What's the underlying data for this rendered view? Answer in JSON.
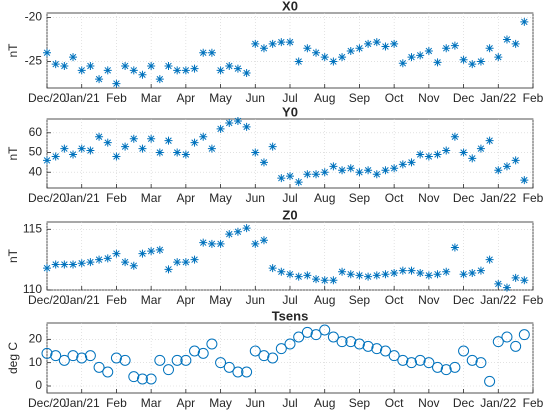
{
  "chart_data": [
    {
      "type": "scatter",
      "title": "X0",
      "ylabel": "nT",
      "marker": "asterisk",
      "color": "#0072BD",
      "grid": true,
      "x": [
        0,
        0.25,
        0.5,
        0.75,
        1,
        1.25,
        1.5,
        1.75,
        2,
        2.25,
        2.5,
        2.75,
        3,
        3.25,
        3.5,
        3.75,
        4,
        4.25,
        4.5,
        4.75,
        5,
        5.25,
        5.5,
        5.75,
        6,
        6.25,
        6.5,
        6.75,
        7,
        7.25,
        7.5,
        7.75,
        8,
        8.25,
        8.5,
        8.75,
        9,
        9.25,
        9.5,
        9.75,
        10,
        10.25,
        10.5,
        10.75,
        11,
        11.25,
        11.5,
        11.75,
        12,
        12.25,
        12.5,
        12.75,
        13,
        13.25,
        13.5,
        13.75
      ],
      "values": [
        -24,
        -25.3,
        -25.5,
        -24.5,
        -26,
        -25.5,
        -27,
        -26,
        -27.5,
        -25.5,
        -26,
        -26.5,
        -25.5,
        -27,
        -25.5,
        -26,
        -26,
        -25.8,
        -24,
        -24,
        -26,
        -25.5,
        -25.8,
        -26.3,
        -23,
        -23.5,
        -23,
        -22.8,
        -22.8,
        -25,
        -23.5,
        -24,
        -24.5,
        -25,
        -24.5,
        -23.8,
        -23.5,
        -23,
        -22.8,
        -23.3,
        -23,
        -25.2,
        -24.5,
        -24.3,
        -23.8,
        -25.1,
        -23.5,
        -23.2,
        -24.8,
        -25.3,
        -25,
        -23.5,
        -24.5,
        -22.5,
        -23,
        -20.5
      ],
      "xlim": [
        0,
        14
      ],
      "ylim": [
        -28,
        -19.5
      ],
      "yticks": [
        -25,
        -20
      ],
      "xticks": [
        {
          "value": 0,
          "label": "Dec/20"
        },
        {
          "value": 1,
          "label": "Jan/21"
        },
        {
          "value": 2,
          "label": "Feb"
        },
        {
          "value": 3,
          "label": "Mar"
        },
        {
          "value": 4,
          "label": "Apr"
        },
        {
          "value": 5,
          "label": "May"
        },
        {
          "value": 6,
          "label": "Jun"
        },
        {
          "value": 7,
          "label": "Jul"
        },
        {
          "value": 8,
          "label": "Aug"
        },
        {
          "value": 9,
          "label": "Sep"
        },
        {
          "value": 10,
          "label": "Oct"
        },
        {
          "value": 11,
          "label": "Nov"
        },
        {
          "value": 12,
          "label": "Dec"
        },
        {
          "value": 13,
          "label": "Jan/22"
        },
        {
          "value": 14,
          "label": "Feb"
        }
      ]
    },
    {
      "type": "scatter",
      "title": "Y0",
      "ylabel": "nT",
      "marker": "asterisk",
      "color": "#0072BD",
      "grid": true,
      "x": [
        0,
        0.25,
        0.5,
        0.75,
        1,
        1.25,
        1.5,
        1.75,
        2,
        2.25,
        2.5,
        2.75,
        3,
        3.25,
        3.5,
        3.75,
        4,
        4.25,
        4.5,
        4.75,
        5,
        5.25,
        5.5,
        5.75,
        6,
        6.25,
        6.5,
        6.75,
        7,
        7.25,
        7.5,
        7.75,
        8,
        8.25,
        8.5,
        8.75,
        9,
        9.25,
        9.5,
        9.75,
        10,
        10.25,
        10.5,
        10.75,
        11,
        11.25,
        11.5,
        11.75,
        12,
        12.25,
        12.5,
        12.75,
        13,
        13.25,
        13.5,
        13.75
      ],
      "values": [
        46,
        48,
        52,
        49,
        52,
        51,
        58,
        55,
        48,
        53,
        57,
        52,
        57,
        50,
        56,
        50,
        49,
        55,
        58,
        52,
        62,
        65,
        66,
        63,
        50,
        45,
        53,
        37,
        38,
        35,
        39,
        39,
        40,
        43,
        41,
        42,
        40,
        41,
        39,
        41,
        42,
        44,
        45,
        49,
        48,
        49,
        51,
        58,
        50,
        47,
        52,
        56,
        41,
        43,
        46,
        36
      ],
      "xlim": [
        0,
        14
      ],
      "ylim": [
        32,
        67
      ],
      "yticks": [
        40,
        50,
        60
      ],
      "xticks": [
        {
          "value": 0,
          "label": "Dec/20"
        },
        {
          "value": 1,
          "label": "Jan/21"
        },
        {
          "value": 2,
          "label": "Feb"
        },
        {
          "value": 3,
          "label": "Mar"
        },
        {
          "value": 4,
          "label": "Apr"
        },
        {
          "value": 5,
          "label": "May"
        },
        {
          "value": 6,
          "label": "Jun"
        },
        {
          "value": 7,
          "label": "Jul"
        },
        {
          "value": 8,
          "label": "Aug"
        },
        {
          "value": 9,
          "label": "Sep"
        },
        {
          "value": 10,
          "label": "Oct"
        },
        {
          "value": 11,
          "label": "Nov"
        },
        {
          "value": 12,
          "label": "Dec"
        },
        {
          "value": 13,
          "label": "Jan/22"
        },
        {
          "value": 14,
          "label": "Feb"
        }
      ]
    },
    {
      "type": "scatter",
      "title": "Z0",
      "ylabel": "nT",
      "marker": "asterisk",
      "color": "#0072BD",
      "grid": true,
      "x": [
        0,
        0.25,
        0.5,
        0.75,
        1,
        1.25,
        1.5,
        1.75,
        2,
        2.25,
        2.5,
        2.75,
        3,
        3.25,
        3.5,
        3.75,
        4,
        4.25,
        4.5,
        4.75,
        5,
        5.25,
        5.5,
        5.75,
        6,
        6.25,
        6.5,
        6.75,
        7,
        7.25,
        7.5,
        7.75,
        8,
        8.25,
        8.5,
        8.75,
        9,
        9.25,
        9.5,
        9.75,
        10,
        10.25,
        10.5,
        10.75,
        11,
        11.25,
        11.5,
        11.75,
        12,
        12.25,
        12.5,
        12.75,
        13,
        13.25,
        13.5,
        13.75
      ],
      "values": [
        111.8,
        112.1,
        112.1,
        112.1,
        112.2,
        112.3,
        112.5,
        112.6,
        113.0,
        112.3,
        112.0,
        113.0,
        113.2,
        113.3,
        111.7,
        112.3,
        112.3,
        112.5,
        113.9,
        113.8,
        113.8,
        114.6,
        114.8,
        115.1,
        113.8,
        114.1,
        111.8,
        111.5,
        111.3,
        111.1,
        111.2,
        110.9,
        110.8,
        110.8,
        111.5,
        111.3,
        111.2,
        111.1,
        111.2,
        111.3,
        111.4,
        111.6,
        111.6,
        111.4,
        111.2,
        111.3,
        111.5,
        113.5,
        111.3,
        111.4,
        111.6,
        112.5,
        110.5,
        110.2,
        111.0,
        110.8
      ],
      "xlim": [
        0,
        14
      ],
      "ylim": [
        110,
        115.6
      ],
      "yticks": [
        110,
        115
      ],
      "xticks": [
        {
          "value": 0,
          "label": "Dec/20"
        },
        {
          "value": 1,
          "label": "Jan/21"
        },
        {
          "value": 2,
          "label": "Feb"
        },
        {
          "value": 3,
          "label": "Mar"
        },
        {
          "value": 4,
          "label": "Apr"
        },
        {
          "value": 5,
          "label": "May"
        },
        {
          "value": 6,
          "label": "Jun"
        },
        {
          "value": 7,
          "label": "Jul"
        },
        {
          "value": 8,
          "label": "Aug"
        },
        {
          "value": 9,
          "label": "Sep"
        },
        {
          "value": 10,
          "label": "Oct"
        },
        {
          "value": 11,
          "label": "Nov"
        },
        {
          "value": 12,
          "label": "Dec"
        },
        {
          "value": 13,
          "label": "Jan/22"
        },
        {
          "value": 14,
          "label": "Feb"
        }
      ]
    },
    {
      "type": "scatter",
      "title": "Tsens",
      "ylabel": "deg C",
      "marker": "circle",
      "color": "#0072BD",
      "grid": true,
      "x": [
        0,
        0.25,
        0.5,
        0.75,
        1,
        1.25,
        1.5,
        1.75,
        2,
        2.25,
        2.5,
        2.75,
        3,
        3.25,
        3.5,
        3.75,
        4,
        4.25,
        4.5,
        4.75,
        5,
        5.25,
        5.5,
        5.75,
        6,
        6.25,
        6.5,
        6.75,
        7,
        7.25,
        7.5,
        7.75,
        8,
        8.25,
        8.5,
        8.75,
        9,
        9.25,
        9.5,
        9.75,
        10,
        10.25,
        10.5,
        10.75,
        11,
        11.25,
        11.5,
        11.75,
        12,
        12.25,
        12.5,
        12.75,
        13,
        13.25,
        13.5,
        13.75
      ],
      "values": [
        14,
        13,
        11,
        13,
        12,
        13,
        8,
        6,
        12,
        11,
        4,
        3,
        3,
        11,
        7,
        11,
        11,
        15,
        14,
        18,
        10,
        8,
        6,
        6,
        15,
        13,
        12,
        16,
        18,
        21,
        23,
        22,
        24,
        21,
        19,
        19,
        18,
        17,
        16,
        15,
        13,
        11,
        10,
        11,
        10,
        8,
        7,
        8,
        15,
        11,
        10,
        2,
        19,
        21,
        17,
        22
      ],
      "xlim": [
        0,
        14
      ],
      "ylim": [
        -3,
        27
      ],
      "yticks": [
        0,
        10,
        20
      ],
      "xticks": [
        {
          "value": 0,
          "label": "Dec/20"
        },
        {
          "value": 1,
          "label": "Jan/21"
        },
        {
          "value": 2,
          "label": "Feb"
        },
        {
          "value": 3,
          "label": "Mar"
        },
        {
          "value": 4,
          "label": "Apr"
        },
        {
          "value": 5,
          "label": "May"
        },
        {
          "value": 6,
          "label": "Jun"
        },
        {
          "value": 7,
          "label": "Jul"
        },
        {
          "value": 8,
          "label": "Aug"
        },
        {
          "value": 9,
          "label": "Sep"
        },
        {
          "value": 10,
          "label": "Oct"
        },
        {
          "value": 11,
          "label": "Nov"
        },
        {
          "value": 12,
          "label": "Dec"
        },
        {
          "value": 13,
          "label": "Jan/22"
        },
        {
          "value": 14,
          "label": "Feb"
        }
      ]
    }
  ]
}
